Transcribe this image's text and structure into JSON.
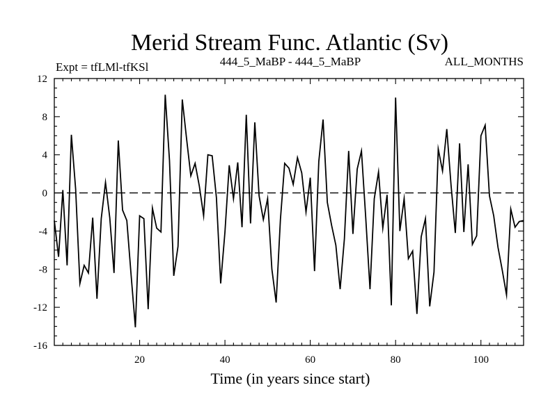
{
  "chart_data": {
    "type": "line",
    "title": "Merid Stream Func. Atlantic (Sv)",
    "subtitle_left": "Expt = tfLMl-tfKSl",
    "subtitle_center": "444_5_MaBP - 444_5_MaBP",
    "subtitle_right": "ALL_MONTHS",
    "xlabel": "Time (in years since start)",
    "ylabel": "",
    "xlim": [
      0,
      110
    ],
    "ylim": [
      -16,
      12
    ],
    "xticks": [
      20,
      40,
      60,
      80,
      100
    ],
    "yticks": [
      12,
      8,
      4,
      0,
      -4,
      -8,
      -12,
      -16
    ],
    "zero_line": 0,
    "series": [
      {
        "name": "Merid Stream Func.",
        "x": [
          0,
          1,
          2,
          3,
          4,
          5,
          6,
          7,
          8,
          9,
          10,
          11,
          12,
          13,
          14,
          15,
          16,
          17,
          18,
          19,
          20,
          21,
          22,
          23,
          24,
          25,
          26,
          27,
          28,
          29,
          30,
          31,
          32,
          33,
          34,
          35,
          36,
          37,
          38,
          39,
          40,
          41,
          42,
          43,
          44,
          45,
          46,
          47,
          48,
          49,
          50,
          51,
          52,
          53,
          54,
          55,
          56,
          57,
          58,
          59,
          60,
          61,
          62,
          63,
          64,
          65,
          66,
          67,
          68,
          69,
          70,
          71,
          72,
          73,
          74,
          75,
          76,
          77,
          78,
          79,
          80,
          81,
          82,
          83,
          84,
          85,
          86,
          87,
          88,
          89,
          90,
          91,
          92,
          93,
          94,
          95,
          96,
          97,
          98,
          99,
          100,
          101,
          102,
          103,
          104,
          105,
          106,
          107,
          108,
          109,
          110
        ],
        "values": [
          -2.9,
          -6.7,
          0.3,
          -7.6,
          6.1,
          0.4,
          -9.5,
          -7.6,
          -8.4,
          -2.6,
          -11.1,
          -2.7,
          1.1,
          -2.6,
          -8.4,
          5.5,
          -1.8,
          -2.9,
          -8.6,
          -14.1,
          -2.4,
          -2.7,
          -12.2,
          -1.6,
          -3.7,
          -4.1,
          10.3,
          3.4,
          -8.7,
          -5.6,
          9.8,
          5.7,
          1.8,
          3.1,
          0.7,
          -2.4,
          4.0,
          3.9,
          -0.5,
          -9.5,
          -4.1,
          2.9,
          -0.6,
          3.2,
          -3.6,
          8.2,
          -3.2,
          7.4,
          -0.3,
          -2.8,
          -0.6,
          -8.0,
          -11.5,
          -2.8,
          3.1,
          2.6,
          0.9,
          3.7,
          2.1,
          -2.0,
          1.6,
          -8.2,
          3.3,
          7.7,
          -1.0,
          -3.4,
          -5.5,
          -10.1,
          -4.8,
          4.4,
          -4.3,
          2.5,
          4.4,
          -2.6,
          -10.1,
          -0.6,
          2.2,
          -3.7,
          -0.2,
          -11.8,
          10.0,
          -4.0,
          -0.6,
          -6.9,
          -6.1,
          -12.7,
          -4.6,
          -2.7,
          -11.9,
          -8.3,
          4.6,
          2.3,
          6.7,
          0.8,
          -4.2,
          5.2,
          -4.1,
          3.0,
          -5.4,
          -4.5,
          6.0,
          7.1,
          -0.3,
          -2.4,
          -5.7,
          -8.1,
          -10.7,
          -1.7,
          -3.6,
          -3.0,
          -2.9
        ]
      }
    ]
  }
}
